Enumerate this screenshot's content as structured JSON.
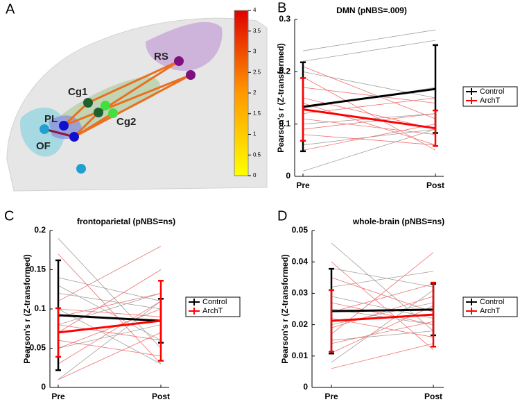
{
  "panel_a": {
    "panel_label": "A",
    "node_labels": [
      "RS",
      "Cg1",
      "PL",
      "Cg2",
      "OF"
    ],
    "colorbar": {
      "ylim": [
        0,
        4
      ],
      "yticks": [
        0,
        0.5,
        1,
        1.5,
        2,
        2.5,
        3,
        3.5,
        4
      ]
    }
  },
  "chart_data": [
    {
      "type": "line",
      "panel_label": "B",
      "title": "DMN (pNBS=.009)",
      "y_label": "Pearson's r (Z-transformed)",
      "categories": [
        "Pre",
        "Post"
      ],
      "ylim": [
        0,
        0.3
      ],
      "yticks": [
        0,
        0.1,
        0.2,
        0.3
      ],
      "series": [
        {
          "color": "#a0a0a0",
          "values": [
            0.24,
            0.28
          ]
        },
        {
          "color": "#a0a0a0",
          "values": [
            0.22,
            0.26
          ]
        },
        {
          "color": "#a0a0a0",
          "values": [
            0.2,
            0.15
          ]
        },
        {
          "color": "#a0a0a0",
          "values": [
            0.13,
            0.17
          ]
        },
        {
          "color": "#a0a0a0",
          "values": [
            0.1,
            0.12
          ]
        },
        {
          "color": "#a0a0a0",
          "values": [
            0.06,
            0.09
          ]
        },
        {
          "color": "#a0a0a0",
          "values": [
            0.01,
            0.09
          ]
        },
        {
          "color": "#f07070",
          "values": [
            0.21,
            0.11
          ]
        },
        {
          "color": "#f07070",
          "values": [
            0.19,
            0.05
          ]
        },
        {
          "color": "#f07070",
          "values": [
            0.17,
            0.14
          ]
        },
        {
          "color": "#f07070",
          "values": [
            0.15,
            0.09
          ]
        },
        {
          "color": "#f07070",
          "values": [
            0.14,
            0.06
          ]
        },
        {
          "color": "#f07070",
          "values": [
            0.12,
            0.15
          ]
        },
        {
          "color": "#f07070",
          "values": [
            0.11,
            0.08
          ]
        },
        {
          "color": "#f07070",
          "values": [
            0.09,
            0.12
          ]
        },
        {
          "color": "#f07070",
          "values": [
            0.08,
            0.06
          ]
        },
        {
          "color": "#f07070",
          "values": [
            0.05,
            0.1
          ]
        },
        {
          "name": "Control",
          "color": "#000000",
          "values": [
            0.133,
            0.167
          ],
          "errors": [
            0.085,
            0.084
          ]
        },
        {
          "name": "ArchT",
          "color": "#ff0000",
          "values": [
            0.128,
            0.092
          ],
          "errors": [
            0.06,
            0.034
          ]
        }
      ]
    },
    {
      "type": "line",
      "panel_label": "C",
      "title": "frontoparietal (pNBS=ns)",
      "y_label": "Pearson's r (Z-transformed)",
      "categories": [
        "Pre",
        "Post"
      ],
      "ylim": [
        0,
        0.2
      ],
      "yticks": [
        0,
        0.05,
        0.1,
        0.15,
        0.2
      ],
      "series": [
        {
          "color": "#a0a0a0",
          "values": [
            0.19,
            0.05
          ]
        },
        {
          "color": "#a0a0a0",
          "values": [
            0.14,
            0.11
          ]
        },
        {
          "color": "#a0a0a0",
          "values": [
            0.13,
            0.06
          ]
        },
        {
          "color": "#a0a0a0",
          "values": [
            0.12,
            0.1
          ]
        },
        {
          "color": "#a0a0a0",
          "values": [
            0.1,
            0.03
          ]
        },
        {
          "color": "#a0a0a0",
          "values": [
            0.08,
            0.12
          ]
        },
        {
          "color": "#a0a0a0",
          "values": [
            0.05,
            0.08
          ]
        },
        {
          "color": "#a0a0a0",
          "values": [
            0.01,
            0.11
          ]
        },
        {
          "color": "#f07070",
          "values": [
            0.17,
            0.03
          ]
        },
        {
          "color": "#f07070",
          "values": [
            0.11,
            0.18
          ]
        },
        {
          "color": "#f07070",
          "values": [
            0.1,
            0.09
          ]
        },
        {
          "color": "#f07070",
          "values": [
            0.09,
            0.12
          ]
        },
        {
          "color": "#f07070",
          "values": [
            0.08,
            0.06
          ]
        },
        {
          "color": "#f07070",
          "values": [
            0.07,
            0.15
          ]
        },
        {
          "color": "#f07070",
          "values": [
            0.06,
            0.04
          ]
        },
        {
          "color": "#f07070",
          "values": [
            0.05,
            0.1
          ]
        },
        {
          "color": "#f07070",
          "values": [
            0.03,
            0.11
          ]
        },
        {
          "color": "#f07070",
          "values": [
            0.01,
            0.07
          ]
        },
        {
          "name": "Control",
          "color": "#000000",
          "values": [
            0.092,
            0.085
          ],
          "errors": [
            0.07,
            0.028
          ]
        },
        {
          "name": "ArchT",
          "color": "#ff0000",
          "values": [
            0.07,
            0.085
          ],
          "errors": [
            0.031,
            0.051
          ]
        }
      ]
    },
    {
      "type": "line",
      "panel_label": "D",
      "title": "whole-brain (pNBS=ns)",
      "y_label": "Pearson's r (Z-transformed)",
      "categories": [
        "Pre",
        "Post"
      ],
      "ylim": [
        0,
        0.05
      ],
      "yticks": [
        0,
        0.01,
        0.02,
        0.03,
        0.04,
        0.05
      ],
      "series": [
        {
          "color": "#a0a0a0",
          "values": [
            0.046,
            0.018
          ]
        },
        {
          "color": "#a0a0a0",
          "values": [
            0.038,
            0.032
          ]
        },
        {
          "color": "#a0a0a0",
          "values": [
            0.032,
            0.037
          ]
        },
        {
          "color": "#a0a0a0",
          "values": [
            0.029,
            0.022
          ]
        },
        {
          "color": "#a0a0a0",
          "values": [
            0.025,
            0.02
          ]
        },
        {
          "color": "#a0a0a0",
          "values": [
            0.02,
            0.027
          ]
        },
        {
          "color": "#a0a0a0",
          "values": [
            0.015,
            0.018
          ]
        },
        {
          "color": "#a0a0a0",
          "values": [
            0.008,
            0.031
          ]
        },
        {
          "color": "#f07070",
          "values": [
            0.04,
            0.012
          ]
        },
        {
          "color": "#f07070",
          "values": [
            0.035,
            0.024
          ]
        },
        {
          "color": "#f07070",
          "values": [
            0.027,
            0.02
          ]
        },
        {
          "color": "#f07070",
          "values": [
            0.024,
            0.033
          ]
        },
        {
          "color": "#f07070",
          "values": [
            0.022,
            0.016
          ]
        },
        {
          "color": "#f07070",
          "values": [
            0.019,
            0.029
          ]
        },
        {
          "color": "#f07070",
          "values": [
            0.017,
            0.043
          ]
        },
        {
          "color": "#f07070",
          "values": [
            0.014,
            0.021
          ]
        },
        {
          "color": "#f07070",
          "values": [
            0.011,
            0.026
          ]
        },
        {
          "color": "#f07070",
          "values": [
            0.006,
            0.014
          ]
        },
        {
          "name": "Control",
          "color": "#000000",
          "values": [
            0.0243,
            0.0248
          ],
          "errors": [
            0.0135,
            0.0082
          ]
        },
        {
          "name": "ArchT",
          "color": "#ff0000",
          "values": [
            0.0212,
            0.0232
          ],
          "errors": [
            0.0098,
            0.0102
          ]
        }
      ]
    }
  ]
}
